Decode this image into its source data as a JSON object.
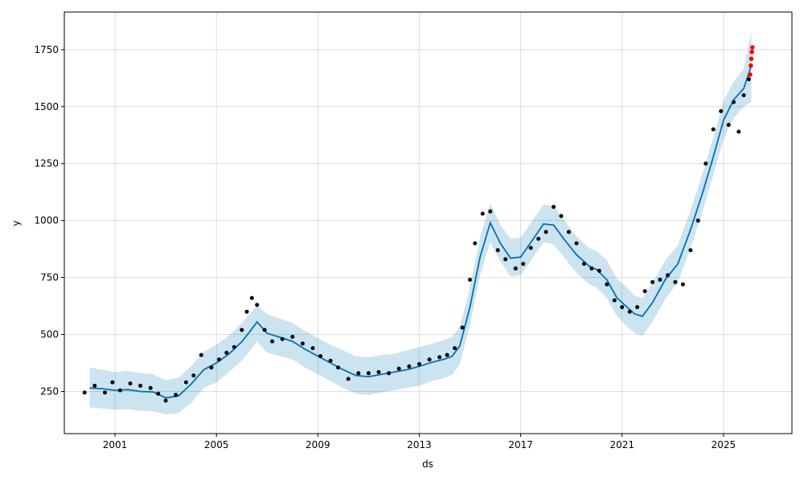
{
  "chart_data": {
    "type": "line",
    "title": "",
    "xlabel": "ds",
    "ylabel": "y",
    "xlim": [
      1999.0,
      2027.7
    ],
    "ylim": [
      65,
      1915
    ],
    "grid": true,
    "x_ticks": [
      2001,
      2005,
      2009,
      2013,
      2017,
      2021,
      2025
    ],
    "x_tick_labels": [
      "2001",
      "2005",
      "2009",
      "2013",
      "2017",
      "2021",
      "2025"
    ],
    "y_ticks": [
      250,
      500,
      750,
      1000,
      1250,
      1500,
      1750
    ],
    "y_tick_labels": [
      "250",
      "500",
      "750",
      "1000",
      "1250",
      "1500",
      "1750"
    ],
    "colors": {
      "forecast": "#0072B2",
      "uncertainty": "#0072B2",
      "observed": "#000000",
      "holdout": "#FF0000",
      "grid": "#dddddd"
    },
    "series": [
      {
        "role": "forecast",
        "style": "line",
        "x": [
          2000.0,
          2000.5,
          2001.0,
          2001.5,
          2002.0,
          2002.5,
          2003.0,
          2003.5,
          2004.0,
          2004.5,
          2005.0,
          2005.5,
          2006.0,
          2006.3,
          2006.6,
          2007.0,
          2007.5,
          2008.0,
          2008.5,
          2009.0,
          2009.5,
          2010.0,
          2010.5,
          2011.0,
          2011.5,
          2012.0,
          2012.5,
          2013.0,
          2013.5,
          2014.0,
          2014.3,
          2014.6,
          2015.0,
          2015.4,
          2015.8,
          2016.2,
          2016.6,
          2017.0,
          2017.5,
          2017.9,
          2018.3,
          2018.7,
          2019.2,
          2019.7,
          2020.0,
          2020.4,
          2020.8,
          2021.2,
          2021.5,
          2021.8,
          2022.2,
          2022.7,
          2023.2,
          2023.7,
          2024.2,
          2024.6,
          2025.0,
          2025.4,
          2025.8,
          2026.1
        ],
        "y": [
          265,
          262,
          255,
          258,
          250,
          248,
          222,
          230,
          282,
          345,
          375,
          415,
          468,
          510,
          555,
          505,
          488,
          470,
          435,
          405,
          375,
          345,
          320,
          315,
          325,
          335,
          345,
          360,
          378,
          392,
          405,
          450,
          620,
          840,
          990,
          900,
          835,
          840,
          920,
          985,
          980,
          920,
          850,
          800,
          785,
          740,
          660,
          620,
          590,
          580,
          640,
          740,
          810,
          960,
          1130,
          1280,
          1440,
          1530,
          1580,
          1680
        ]
      },
      {
        "role": "uncertainty-upper",
        "style": "band",
        "x": [
          2000.0,
          2000.5,
          2001.0,
          2001.5,
          2002.0,
          2002.5,
          2003.0,
          2003.5,
          2004.0,
          2004.5,
          2005.0,
          2005.5,
          2006.0,
          2006.3,
          2006.6,
          2007.0,
          2007.5,
          2008.0,
          2008.5,
          2009.0,
          2009.5,
          2010.0,
          2010.5,
          2011.0,
          2011.5,
          2012.0,
          2012.5,
          2013.0,
          2013.5,
          2014.0,
          2014.3,
          2014.6,
          2015.0,
          2015.4,
          2015.8,
          2016.2,
          2016.6,
          2017.0,
          2017.5,
          2017.9,
          2018.3,
          2018.7,
          2019.2,
          2019.7,
          2020.0,
          2020.4,
          2020.8,
          2021.2,
          2021.5,
          2021.8,
          2022.2,
          2022.7,
          2023.2,
          2023.7,
          2024.2,
          2024.6,
          2025.0,
          2025.4,
          2025.8,
          2026.1
        ],
        "y": [
          355,
          345,
          335,
          340,
          330,
          325,
          300,
          310,
          360,
          425,
          455,
          495,
          550,
          590,
          625,
          590,
          570,
          550,
          515,
          485,
          455,
          430,
          405,
          400,
          410,
          415,
          430,
          445,
          460,
          475,
          490,
          535,
          705,
          925,
          1075,
          980,
          920,
          925,
          1005,
          1070,
          1065,
          1005,
          930,
          880,
          865,
          825,
          745,
          705,
          670,
          660,
          725,
          825,
          890,
          1045,
          1215,
          1365,
          1525,
          1610,
          1665,
          1830
        ]
      },
      {
        "role": "uncertainty-lower",
        "style": "band",
        "x": [
          2000.0,
          2000.5,
          2001.0,
          2001.5,
          2002.0,
          2002.5,
          2003.0,
          2003.5,
          2004.0,
          2004.5,
          2005.0,
          2005.5,
          2006.0,
          2006.3,
          2006.6,
          2007.0,
          2007.5,
          2008.0,
          2008.5,
          2009.0,
          2009.5,
          2010.0,
          2010.5,
          2011.0,
          2011.5,
          2012.0,
          2012.5,
          2013.0,
          2013.5,
          2014.0,
          2014.3,
          2014.6,
          2015.0,
          2015.4,
          2015.8,
          2016.2,
          2016.6,
          2017.0,
          2017.5,
          2017.9,
          2018.3,
          2018.7,
          2019.2,
          2019.7,
          2020.0,
          2020.4,
          2020.8,
          2021.2,
          2021.5,
          2021.8,
          2022.2,
          2022.7,
          2023.2,
          2023.7,
          2024.2,
          2024.6,
          2025.0,
          2025.4,
          2025.8,
          2026.1
        ],
        "y": [
          180,
          175,
          170,
          172,
          165,
          163,
          150,
          155,
          200,
          265,
          290,
          335,
          385,
          425,
          470,
          420,
          405,
          390,
          355,
          325,
          295,
          265,
          240,
          235,
          245,
          255,
          265,
          275,
          295,
          310,
          325,
          370,
          540,
          760,
          905,
          820,
          755,
          760,
          840,
          905,
          895,
          840,
          770,
          720,
          705,
          660,
          580,
          535,
          505,
          495,
          555,
          655,
          730,
          880,
          1050,
          1200,
          1355,
          1450,
          1500,
          1520
        ]
      },
      {
        "role": "observed",
        "style": "scatter",
        "x": [
          1999.8,
          2000.2,
          2000.6,
          2000.9,
          2001.2,
          2001.6,
          2002.0,
          2002.4,
          2002.7,
          2003.0,
          2003.4,
          2003.8,
          2004.1,
          2004.4,
          2004.8,
          2005.1,
          2005.4,
          2005.7,
          2006.0,
          2006.2,
          2006.4,
          2006.6,
          2006.9,
          2007.2,
          2007.6,
          2008.0,
          2008.4,
          2008.8,
          2009.1,
          2009.5,
          2009.8,
          2010.2,
          2010.6,
          2011.0,
          2011.4,
          2011.8,
          2012.2,
          2012.6,
          2013.0,
          2013.4,
          2013.8,
          2014.1,
          2014.4,
          2014.7,
          2015.0,
          2015.2,
          2015.5,
          2015.8,
          2016.1,
          2016.4,
          2016.8,
          2017.1,
          2017.4,
          2017.7,
          2018.0,
          2018.3,
          2018.6,
          2018.9,
          2019.2,
          2019.5,
          2019.8,
          2020.1,
          2020.4,
          2020.7,
          2021.0,
          2021.3,
          2021.6,
          2021.9,
          2022.2,
          2022.5,
          2022.8,
          2023.1,
          2023.4,
          2023.7,
          2024.0,
          2024.3,
          2024.6,
          2024.9,
          2025.2,
          2025.4,
          2025.6,
          2025.8,
          2026.0
        ],
        "y": [
          245,
          275,
          245,
          290,
          255,
          285,
          275,
          265,
          240,
          210,
          235,
          290,
          320,
          410,
          355,
          390,
          420,
          445,
          520,
          600,
          660,
          630,
          520,
          470,
          480,
          490,
          460,
          440,
          405,
          385,
          355,
          305,
          330,
          330,
          335,
          330,
          350,
          360,
          370,
          390,
          400,
          410,
          440,
          530,
          740,
          900,
          1030,
          1040,
          870,
          830,
          790,
          810,
          880,
          920,
          950,
          1060,
          1020,
          950,
          900,
          810,
          790,
          780,
          720,
          650,
          620,
          600,
          620,
          690,
          730,
          740,
          760,
          730,
          720,
          870,
          1000,
          1250,
          1400,
          1480,
          1420,
          1520,
          1390,
          1550,
          1620
        ]
      },
      {
        "role": "holdout",
        "style": "scatter",
        "x": [
          2026.05,
          2026.08,
          2026.1,
          2026.12,
          2026.14
        ],
        "y": [
          1640,
          1680,
          1710,
          1740,
          1760
        ]
      }
    ]
  }
}
